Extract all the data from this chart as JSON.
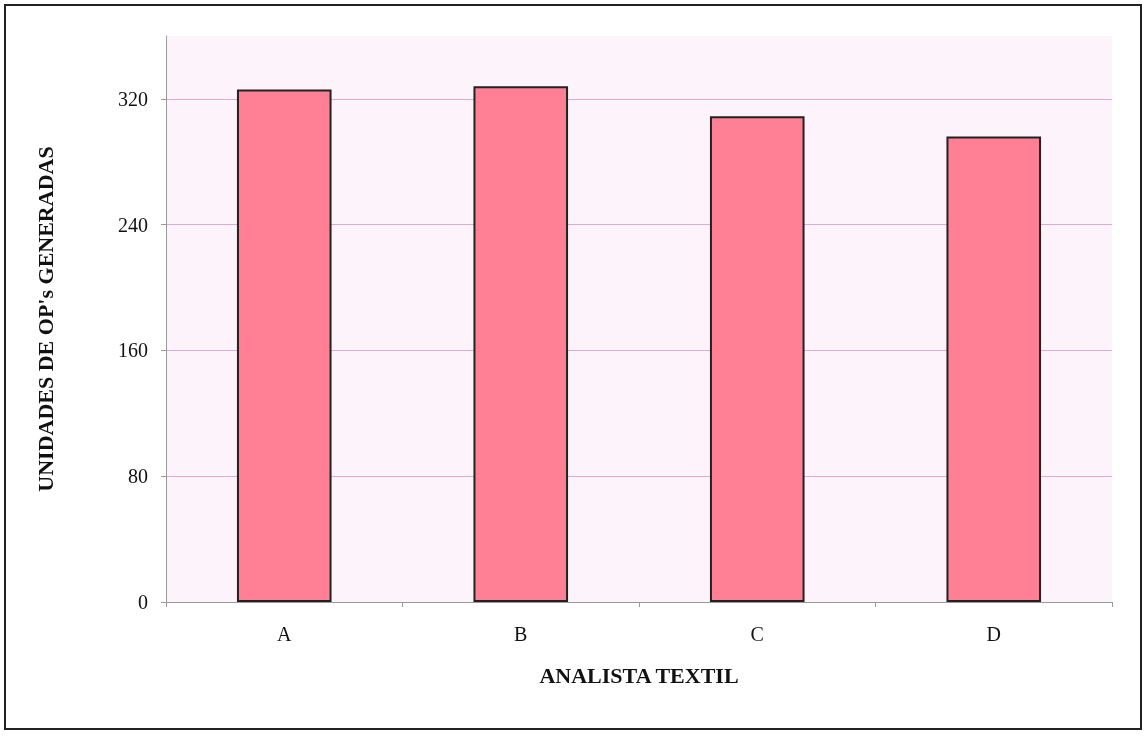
{
  "chart_data": {
    "type": "bar",
    "xlabel": "ANALISTA TEXTIL",
    "ylabel": "UNIDADES DE OP's GENERADAS",
    "categories": [
      "A",
      "B",
      "C",
      "D"
    ],
    "values": [
      326,
      328,
      309,
      296
    ],
    "color": "#ff8095",
    "ylim": [
      0,
      360
    ],
    "yticks": [
      0,
      80,
      160,
      240,
      320
    ],
    "grid": "y"
  }
}
